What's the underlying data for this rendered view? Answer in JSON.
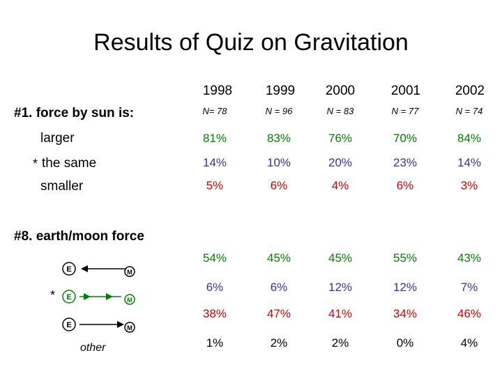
{
  "title": "Results of Quiz on Gravitation",
  "years": [
    "1998",
    "1999",
    "2000",
    "2001",
    "2002"
  ],
  "n_values": [
    "N= 78",
    "N = 96",
    "N = 83",
    "N = 77",
    "N = 74"
  ],
  "q1": {
    "label": "#1. force by sun is:",
    "options": [
      {
        "label": "larger",
        "color": "#008000",
        "values": [
          "81%",
          "83%",
          "76%",
          "70%",
          "84%"
        ]
      },
      {
        "star": "*",
        "label": "the same",
        "color": "#333399",
        "values": [
          "14%",
          "10%",
          "20%",
          "23%",
          "14%"
        ]
      },
      {
        "label": "smaller",
        "color": "#cc0000",
        "values": [
          "5%",
          "6%",
          "4%",
          "6%",
          "3%"
        ]
      }
    ]
  },
  "q8": {
    "label": "#8. earth/moon force",
    "options": [
      {
        "icon": "earth-moon-arrow-toward-earth-icon",
        "color": "#008000",
        "values": [
          "54%",
          "45%",
          "45%",
          "55%",
          "43%"
        ]
      },
      {
        "star": "*",
        "icon": "earth-moon-double-arrow-icon",
        "color": "#333399",
        "values": [
          "6%",
          "6%",
          "12%",
          "12%",
          "7%"
        ]
      },
      {
        "icon": "earth-moon-arrow-toward-moon-icon",
        "color": "#cc0000",
        "values": [
          "38%",
          "47%",
          "41%",
          "34%",
          "46%"
        ]
      },
      {
        "label": "other",
        "color": "#000000",
        "values": [
          "1%",
          "2%",
          "2%",
          "0%",
          "4%"
        ]
      }
    ],
    "earth_letter": "E",
    "moon_letter": "M"
  }
}
